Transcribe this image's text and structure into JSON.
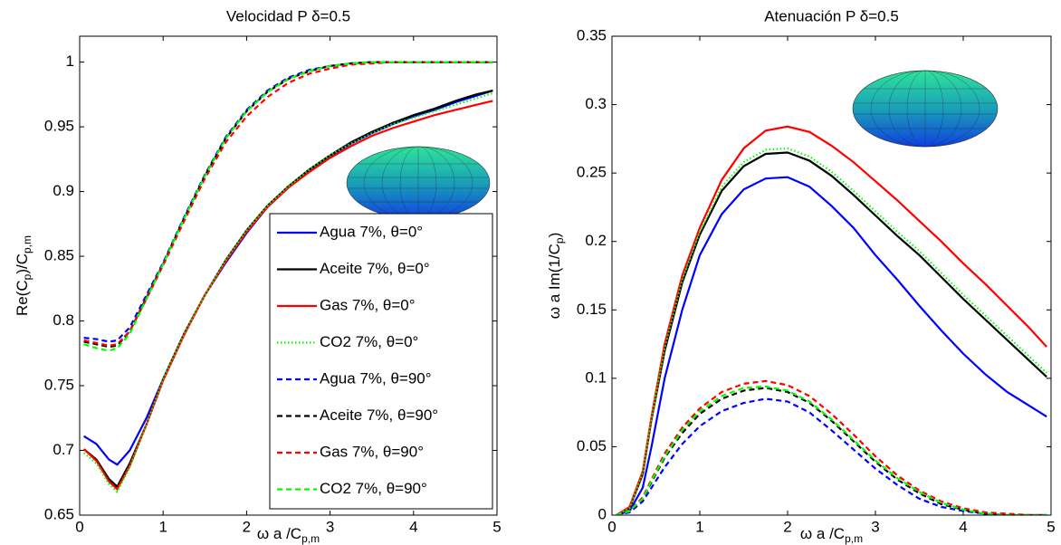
{
  "chart_data": [
    {
      "type": "line",
      "title": "Velocidad P δ=0.5",
      "xlabel_parts": [
        "ω a /C",
        "p,m"
      ],
      "ylabel_parts": [
        "Re(C",
        "p",
        ")/C",
        "p,m"
      ],
      "xlim": [
        0,
        5
      ],
      "ylim": [
        0.65,
        1.02
      ],
      "xticks": [
        0,
        1,
        2,
        3,
        4,
        5
      ],
      "yticks": [
        0.65,
        0.7,
        0.75,
        0.8,
        0.85,
        0.9,
        0.95,
        1
      ],
      "legend": "lower right",
      "x": [
        0.05,
        0.2,
        0.35,
        0.45,
        0.6,
        0.8,
        1,
        1.25,
        1.5,
        1.75,
        2,
        2.25,
        2.5,
        2.75,
        3,
        3.25,
        3.5,
        3.75,
        4,
        4.25,
        4.5,
        4.75,
        4.95
      ],
      "series": [
        {
          "name": "Agua 7%, θ=0°",
          "color": "#0000ff",
          "line_style": "solid",
          "values": [
            0.711,
            0.705,
            0.693,
            0.689,
            0.7,
            0.725,
            0.755,
            0.79,
            0.82,
            0.845,
            0.868,
            0.888,
            0.903,
            0.916,
            0.927,
            0.937,
            0.945,
            0.952,
            0.958,
            0.963,
            0.969,
            0.974,
            0.978
          ]
        },
        {
          "name": "Aceite 7%, θ=0°",
          "color": "#000000",
          "line_style": "solid",
          "values": [
            0.701,
            0.693,
            0.678,
            0.672,
            0.69,
            0.72,
            0.755,
            0.79,
            0.82,
            0.847,
            0.87,
            0.889,
            0.904,
            0.917,
            0.928,
            0.938,
            0.946,
            0.953,
            0.959,
            0.964,
            0.97,
            0.975,
            0.978
          ]
        },
        {
          "name": "Gas 7%, θ=0°",
          "color": "#ff0000",
          "line_style": "solid",
          "values": [
            0.701,
            0.692,
            0.676,
            0.67,
            0.688,
            0.72,
            0.754,
            0.789,
            0.82,
            0.846,
            0.869,
            0.888,
            0.903,
            0.915,
            0.926,
            0.935,
            0.943,
            0.949,
            0.954,
            0.959,
            0.963,
            0.967,
            0.97
          ]
        },
        {
          "name": "CO2 7%, θ=0°",
          "color": "#00ff00",
          "line_style": "dotted",
          "values": [
            0.698,
            0.69,
            0.674,
            0.668,
            0.687,
            0.72,
            0.755,
            0.79,
            0.82,
            0.847,
            0.87,
            0.889,
            0.904,
            0.917,
            0.928,
            0.937,
            0.945,
            0.952,
            0.957,
            0.962,
            0.967,
            0.972,
            0.976
          ]
        },
        {
          "name": "Agua 7%, θ=90°",
          "color": "#0000ff",
          "line_style": "dashed",
          "values": [
            0.787,
            0.786,
            0.784,
            0.785,
            0.795,
            0.82,
            0.845,
            0.88,
            0.913,
            0.942,
            0.963,
            0.978,
            0.988,
            0.994,
            0.997,
            0.999,
            1,
            1,
            1,
            1,
            1,
            1,
            1
          ]
        },
        {
          "name": "Aceite 7%, θ=90°",
          "color": "#000000",
          "line_style": "dashed",
          "values": [
            0.784,
            0.782,
            0.78,
            0.781,
            0.792,
            0.818,
            0.844,
            0.879,
            0.912,
            0.941,
            0.962,
            0.977,
            0.987,
            0.993,
            0.997,
            0.999,
            1,
            1,
            1,
            1,
            1,
            1,
            1
          ]
        },
        {
          "name": "Gas 7%, θ=90°",
          "color": "#ff0000",
          "line_style": "dashed",
          "values": [
            0.785,
            0.783,
            0.781,
            0.782,
            0.792,
            0.817,
            0.843,
            0.877,
            0.91,
            0.938,
            0.958,
            0.973,
            0.984,
            0.991,
            0.995,
            0.998,
            0.999,
            1,
            1,
            1,
            1,
            1,
            1
          ]
        },
        {
          "name": "CO2 7%, θ=90°",
          "color": "#00ff00",
          "line_style": "dashed",
          "values": [
            0.782,
            0.779,
            0.777,
            0.779,
            0.79,
            0.817,
            0.844,
            0.879,
            0.912,
            0.941,
            0.962,
            0.977,
            0.987,
            0.993,
            0.997,
            0.999,
            1,
            1,
            1,
            1,
            1,
            1,
            1
          ]
        }
      ]
    },
    {
      "type": "line",
      "title": "Atenuación P δ=0.5",
      "xlabel_parts": [
        "ω a /C",
        "p,m"
      ],
      "ylabel_parts": [
        "ω a Im(1/C",
        "p",
        ")"
      ],
      "xlim": [
        0,
        5
      ],
      "ylim": [
        0,
        0.35
      ],
      "xticks": [
        0,
        1,
        2,
        3,
        4,
        5
      ],
      "yticks": [
        0,
        0.05,
        0.1,
        0.15,
        0.2,
        0.25,
        0.3,
        0.35
      ],
      "x": [
        0.05,
        0.2,
        0.35,
        0.45,
        0.6,
        0.8,
        1,
        1.25,
        1.5,
        1.75,
        2,
        2.25,
        2.5,
        2.75,
        3,
        3.25,
        3.5,
        3.75,
        4,
        4.25,
        4.5,
        4.75,
        4.95
      ],
      "series": [
        {
          "name": "Agua 7%, θ=0°",
          "color": "#0000ff",
          "line_style": "solid",
          "values": [
            0,
            0.003,
            0.02,
            0.05,
            0.1,
            0.15,
            0.19,
            0.22,
            0.238,
            0.246,
            0.247,
            0.24,
            0.226,
            0.21,
            0.19,
            0.172,
            0.153,
            0.135,
            0.118,
            0.103,
            0.09,
            0.08,
            0.072
          ]
        },
        {
          "name": "Aceite 7%, θ=0°",
          "color": "#000000",
          "line_style": "solid",
          "values": [
            0,
            0.005,
            0.03,
            0.07,
            0.12,
            0.17,
            0.205,
            0.237,
            0.255,
            0.264,
            0.265,
            0.259,
            0.248,
            0.234,
            0.219,
            0.204,
            0.19,
            0.174,
            0.158,
            0.143,
            0.128,
            0.113,
            0.101
          ]
        },
        {
          "name": "Gas 7%, θ=0°",
          "color": "#ff0000",
          "line_style": "solid",
          "values": [
            0,
            0.006,
            0.032,
            0.072,
            0.125,
            0.175,
            0.21,
            0.245,
            0.268,
            0.281,
            0.284,
            0.28,
            0.27,
            0.258,
            0.244,
            0.23,
            0.215,
            0.2,
            0.184,
            0.169,
            0.153,
            0.137,
            0.123
          ]
        },
        {
          "name": "CO2 7%, θ=0°",
          "color": "#00ff00",
          "line_style": "dotted",
          "values": [
            0,
            0.005,
            0.031,
            0.071,
            0.122,
            0.172,
            0.207,
            0.24,
            0.258,
            0.267,
            0.268,
            0.262,
            0.251,
            0.237,
            0.222,
            0.207,
            0.193,
            0.177,
            0.161,
            0.146,
            0.131,
            0.116,
            0.104
          ]
        },
        {
          "name": "Agua 7%, θ=90°",
          "color": "#0000ff",
          "line_style": "dashed",
          "values": [
            0,
            0.002,
            0.01,
            0.02,
            0.035,
            0.052,
            0.065,
            0.076,
            0.082,
            0.085,
            0.083,
            0.075,
            0.062,
            0.048,
            0.034,
            0.022,
            0.012,
            0.006,
            0.003,
            0.001,
            0,
            0,
            0
          ]
        },
        {
          "name": "Aceite 7%, θ=90°",
          "color": "#000000",
          "line_style": "dashed",
          "values": [
            0,
            0.003,
            0.012,
            0.024,
            0.042,
            0.06,
            0.074,
            0.085,
            0.091,
            0.093,
            0.09,
            0.082,
            0.069,
            0.054,
            0.039,
            0.026,
            0.016,
            0.008,
            0.004,
            0.001,
            0,
            0,
            0
          ]
        },
        {
          "name": "Gas 7%, θ=90°",
          "color": "#ff0000",
          "line_style": "dashed",
          "values": [
            0,
            0.003,
            0.013,
            0.026,
            0.045,
            0.064,
            0.078,
            0.09,
            0.096,
            0.098,
            0.095,
            0.087,
            0.074,
            0.059,
            0.043,
            0.029,
            0.018,
            0.01,
            0.005,
            0.002,
            0.001,
            0,
            0
          ]
        },
        {
          "name": "CO2 7%, θ=90°",
          "color": "#00ff00",
          "line_style": "dashed",
          "values": [
            0,
            0.003,
            0.012,
            0.025,
            0.043,
            0.062,
            0.076,
            0.087,
            0.093,
            0.094,
            0.091,
            0.083,
            0.07,
            0.055,
            0.04,
            0.027,
            0.017,
            0.009,
            0.004,
            0.001,
            0,
            0,
            0
          ]
        }
      ]
    }
  ]
}
